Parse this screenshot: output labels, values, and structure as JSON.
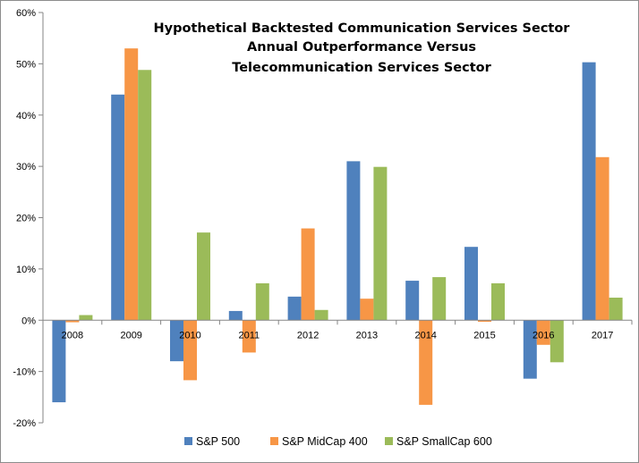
{
  "chart_data": {
    "type": "bar",
    "title_lines": [
      "Hypothetical Backtested Communication Services Sector",
      "Annual Outperformance Versus",
      "Telecommunication Services Sector"
    ],
    "categories": [
      "2008",
      "2009",
      "2010",
      "2011",
      "2012",
      "2013",
      "2014",
      "2015",
      "2016",
      "2017"
    ],
    "series": [
      {
        "name": "S&P 500",
        "color": "#4f81bd",
        "values": [
          -16.0,
          44.0,
          -8.0,
          1.8,
          4.6,
          31.0,
          7.7,
          14.3,
          -11.4,
          50.3
        ]
      },
      {
        "name": "S&P MidCap 400",
        "color": "#f79646",
        "values": [
          -0.4,
          53.0,
          -11.7,
          -6.3,
          17.9,
          4.2,
          -16.5,
          -0.3,
          -4.8,
          31.8
        ]
      },
      {
        "name": "S&P SmallCap 600",
        "color": "#9bbb59",
        "values": [
          1.0,
          48.8,
          17.1,
          7.2,
          2.0,
          29.9,
          8.4,
          7.2,
          -8.2,
          4.4
        ]
      }
    ],
    "ylim": [
      -20,
      60
    ],
    "yticks": [
      -20,
      -10,
      0,
      10,
      20,
      30,
      40,
      50,
      60
    ],
    "ytick_labels": [
      "-20%",
      "-10%",
      "0%",
      "10%",
      "20%",
      "30%",
      "40%",
      "50%",
      "60%"
    ],
    "grid": false,
    "legend_position": "bottom"
  }
}
